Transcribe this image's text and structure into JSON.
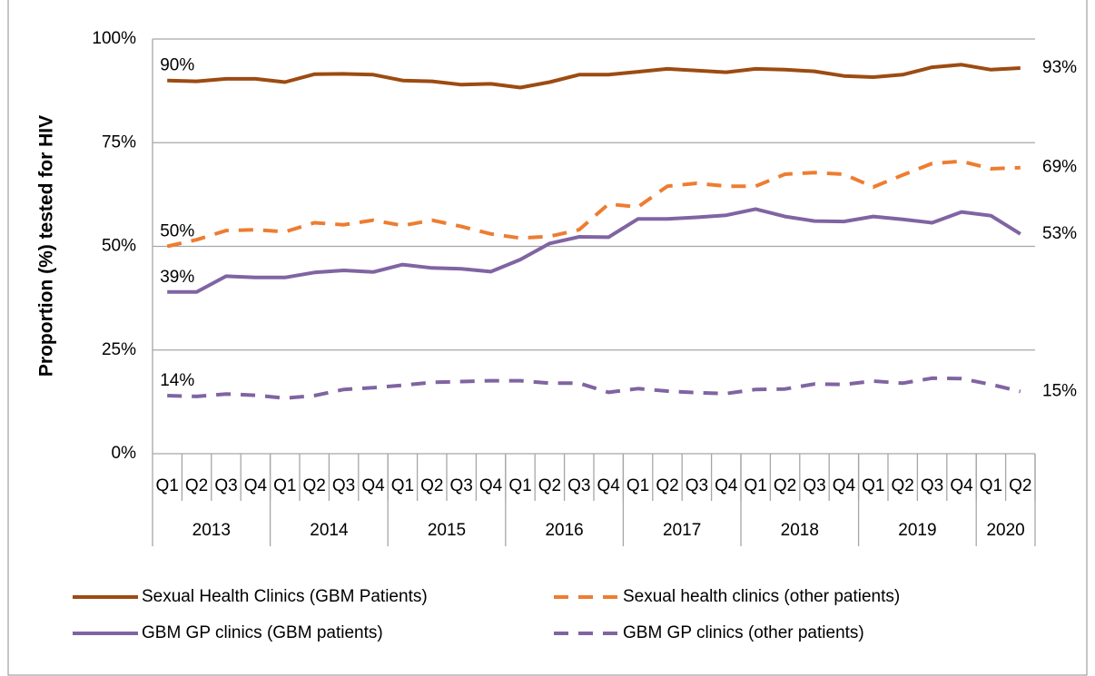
{
  "chart_data": {
    "type": "line",
    "y_label": "Proportion (%) tested for HIV",
    "categories": [
      "Q1",
      "Q2",
      "Q3",
      "Q4",
      "Q1",
      "Q2",
      "Q3",
      "Q4",
      "Q1",
      "Q2",
      "Q3",
      "Q4",
      "Q1",
      "Q2",
      "Q3",
      "Q4",
      "Q1",
      "Q2",
      "Q3",
      "Q4",
      "Q1",
      "Q2",
      "Q3",
      "Q4",
      "Q1",
      "Q2",
      "Q3",
      "Q4",
      "Q1",
      "Q2"
    ],
    "years": [
      "2013",
      "2014",
      "2015",
      "2016",
      "2017",
      "2018",
      "2019",
      "2020"
    ],
    "ylim": [
      0,
      100
    ],
    "yticks": [
      {
        "value": 0,
        "label": "0%"
      },
      {
        "value": 25,
        "label": "25%"
      },
      {
        "value": 50,
        "label": "50%"
      },
      {
        "value": 75,
        "label": "75%"
      },
      {
        "value": 100,
        "label": "100%"
      }
    ],
    "grid": true,
    "legend": "bottom",
    "series": [
      {
        "name": "Sexual Health Clinics (GBM Patients)",
        "color": "#9c4b12",
        "style": "solid",
        "values": [
          90,
          89.8,
          90.4,
          90.4,
          89.6,
          91.5,
          91.6,
          91.4,
          90,
          89.8,
          89,
          89.2,
          88.3,
          89.6,
          91.4,
          91.4,
          92.1,
          92.8,
          92.4,
          92,
          92.8,
          92.6,
          92.2,
          91.1,
          90.8,
          91.4,
          93.2,
          93.8,
          92.6,
          93
        ],
        "value_labels": [
          "90%",
          null,
          null,
          null,
          null,
          null,
          null,
          null,
          null,
          null,
          null,
          null,
          null,
          null,
          null,
          null,
          null,
          null,
          null,
          null,
          null,
          null,
          null,
          null,
          null,
          null,
          null,
          null,
          null,
          "93%"
        ]
      },
      {
        "name": "Sexual health clinics (other patients)",
        "color": "#ed7d31",
        "style": "dashed",
        "values": [
          50,
          51.6,
          53.8,
          54,
          53.5,
          55.7,
          55.2,
          56.3,
          55,
          56.3,
          54.8,
          53,
          52,
          52.4,
          54,
          60.2,
          59.5,
          64.5,
          65.2,
          64.5,
          64.5,
          67.4,
          67.8,
          67.4,
          64.3,
          67.2,
          70,
          70.5,
          68.7,
          69
        ],
        "value_labels": [
          "50%",
          null,
          null,
          null,
          null,
          null,
          null,
          null,
          null,
          null,
          null,
          null,
          null,
          null,
          null,
          null,
          null,
          null,
          null,
          null,
          null,
          null,
          null,
          null,
          null,
          null,
          null,
          null,
          null,
          "69%"
        ]
      },
      {
        "name": "GBM GP clinics (GBM patients)",
        "color": "#8064a2",
        "style": "solid",
        "values": [
          39,
          39,
          42.8,
          42.5,
          42.5,
          43.7,
          44.2,
          43.8,
          45.6,
          44.8,
          44.6,
          43.9,
          46.8,
          50.7,
          52.3,
          52.2,
          56.6,
          56.6,
          57,
          57.5,
          59,
          57.2,
          56.1,
          56,
          57.2,
          56.5,
          55.7,
          58.3,
          57.4,
          53
        ],
        "value_labels": [
          "39%",
          null,
          null,
          null,
          null,
          null,
          null,
          null,
          null,
          null,
          null,
          null,
          null,
          null,
          null,
          null,
          null,
          null,
          null,
          null,
          null,
          null,
          null,
          null,
          null,
          null,
          null,
          null,
          null,
          "53%"
        ]
      },
      {
        "name": "GBM GP clinics (other patients)",
        "color": "#8064a2",
        "style": "dashed",
        "values": [
          14,
          13.8,
          14.4,
          14.1,
          13.4,
          14,
          15.5,
          15.9,
          16.5,
          17.2,
          17.4,
          17.6,
          17.6,
          17,
          17,
          14.8,
          15.7,
          15.1,
          14.7,
          14.5,
          15.5,
          15.6,
          16.8,
          16.7,
          17.5,
          17,
          18.2,
          18.1,
          16.7,
          15
        ],
        "value_labels": [
          "14%",
          null,
          null,
          null,
          null,
          null,
          null,
          null,
          null,
          null,
          null,
          null,
          null,
          null,
          null,
          null,
          null,
          null,
          null,
          null,
          null,
          null,
          null,
          null,
          null,
          null,
          null,
          null,
          null,
          "15%"
        ]
      }
    ]
  }
}
